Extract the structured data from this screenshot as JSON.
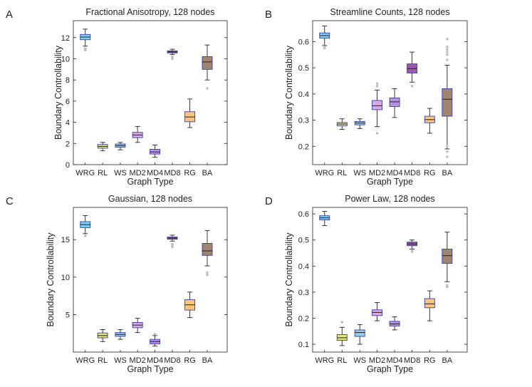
{
  "chart_data": [
    {
      "type": "box",
      "panel_label": "A",
      "title": "Fractional Anisotropy, 128 nodes",
      "xlabel": "Graph Type",
      "ylabel": "Boundary Controllability",
      "categories": [
        "WRG",
        "RL",
        "WS",
        "MD2",
        "MD4",
        "MD8",
        "RG",
        "BA"
      ],
      "ylim": [
        0,
        13.6
      ],
      "yticks": [
        0,
        2,
        4,
        6,
        8,
        10,
        12
      ],
      "ytick_labels": [
        "0",
        "2",
        "4",
        "6",
        "8",
        "10",
        "12"
      ],
      "boxes": [
        {
          "min": 11.2,
          "q1": 11.8,
          "median": 12.05,
          "q3": 12.3,
          "max": 12.8,
          "outliers": [
            10.8,
            10.9,
            11.0
          ]
        },
        {
          "min": 1.3,
          "q1": 1.55,
          "median": 1.72,
          "q3": 1.9,
          "max": 2.1,
          "outliers": []
        },
        {
          "min": 1.4,
          "q1": 1.65,
          "median": 1.8,
          "q3": 1.95,
          "max": 2.1,
          "outliers": []
        },
        {
          "min": 2.1,
          "q1": 2.55,
          "median": 2.8,
          "q3": 3.05,
          "max": 3.6,
          "outliers": []
        },
        {
          "min": 0.7,
          "q1": 1.0,
          "median": 1.2,
          "q3": 1.45,
          "max": 1.85,
          "outliers": []
        },
        {
          "min": 10.4,
          "q1": 10.55,
          "median": 10.65,
          "q3": 10.75,
          "max": 10.9,
          "outliers": [
            10.0,
            10.1,
            10.2
          ]
        },
        {
          "min": 3.5,
          "q1": 4.05,
          "median": 4.5,
          "q3": 5.0,
          "max": 6.2,
          "outliers": []
        },
        {
          "min": 8.0,
          "q1": 9.0,
          "median": 9.7,
          "q3": 10.2,
          "max": 11.3,
          "outliers": [
            7.2
          ]
        }
      ]
    },
    {
      "type": "box",
      "panel_label": "B",
      "title": "Streamline Counts, 128 nodes",
      "xlabel": "Graph Type",
      "ylabel": "Boundary Controllability",
      "categories": [
        "WRG",
        "RL",
        "WS",
        "MD2",
        "MD4",
        "MD8",
        "RG",
        "BA"
      ],
      "ylim": [
        0.13,
        0.68
      ],
      "yticks": [
        0.2,
        0.3,
        0.4,
        0.5,
        0.6
      ],
      "ytick_labels": [
        "0.2",
        "0.3",
        "0.4",
        "0.5",
        "0.6"
      ],
      "boxes": [
        {
          "min": 0.585,
          "q1": 0.613,
          "median": 0.623,
          "q3": 0.633,
          "max": 0.66,
          "outliers": [
            0.575,
            0.58
          ]
        },
        {
          "min": 0.265,
          "q1": 0.278,
          "median": 0.285,
          "q3": 0.291,
          "max": 0.305,
          "outliers": []
        },
        {
          "min": 0.268,
          "q1": 0.282,
          "median": 0.289,
          "q3": 0.295,
          "max": 0.305,
          "outliers": []
        },
        {
          "min": 0.275,
          "q1": 0.34,
          "median": 0.355,
          "q3": 0.375,
          "max": 0.415,
          "outliers": [
            0.25,
            0.43,
            0.44
          ]
        },
        {
          "min": 0.31,
          "q1": 0.352,
          "median": 0.37,
          "q3": 0.385,
          "max": 0.42,
          "outliers": []
        },
        {
          "min": 0.445,
          "q1": 0.48,
          "median": 0.497,
          "q3": 0.515,
          "max": 0.56,
          "outliers": [
            0.43
          ]
        },
        {
          "min": 0.25,
          "q1": 0.29,
          "median": 0.302,
          "q3": 0.315,
          "max": 0.345,
          "outliers": []
        },
        {
          "min": 0.19,
          "q1": 0.315,
          "median": 0.38,
          "q3": 0.42,
          "max": 0.51,
          "outliers": [
            0.16,
            0.18,
            0.2,
            0.53,
            0.55,
            0.56,
            0.57,
            0.58,
            0.61
          ]
        }
      ]
    },
    {
      "type": "box",
      "panel_label": "C",
      "title": "Gaussian, 128 nodes",
      "xlabel": "Graph Type",
      "ylabel": "Boundary Controllability",
      "categories": [
        "WRG",
        "RL",
        "WS",
        "MD2",
        "MD4",
        "MD8",
        "RG",
        "BA"
      ],
      "ylim": [
        0,
        19.3
      ],
      "yticks": [
        5,
        10,
        15
      ],
      "ytick_labels": [
        "5",
        "10",
        "15"
      ],
      "boxes": [
        {
          "min": 15.8,
          "q1": 16.6,
          "median": 17.0,
          "q3": 17.4,
          "max": 18.2,
          "outliers": [
            15.5
          ]
        },
        {
          "min": 1.4,
          "q1": 1.9,
          "median": 2.2,
          "q3": 2.55,
          "max": 3.0,
          "outliers": []
        },
        {
          "min": 1.7,
          "q1": 2.1,
          "median": 2.35,
          "q3": 2.6,
          "max": 3.0,
          "outliers": []
        },
        {
          "min": 2.6,
          "q1": 3.25,
          "median": 3.6,
          "q3": 3.95,
          "max": 4.5,
          "outliers": []
        },
        {
          "min": 0.8,
          "q1": 1.1,
          "median": 1.4,
          "q3": 1.7,
          "max": 2.2,
          "outliers": [
            2.4
          ]
        },
        {
          "min": 14.8,
          "q1": 15.05,
          "median": 15.2,
          "q3": 15.35,
          "max": 15.6,
          "outliers": [
            14.0,
            14.2,
            14.4
          ]
        },
        {
          "min": 4.6,
          "q1": 5.6,
          "median": 6.3,
          "q3": 7.0,
          "max": 8.0,
          "outliers": []
        },
        {
          "min": 11.5,
          "q1": 12.9,
          "median": 13.5,
          "q3": 14.5,
          "max": 16.2,
          "outliers": [
            10.3,
            10.6
          ]
        }
      ]
    },
    {
      "type": "box",
      "panel_label": "D",
      "title": "Power Law, 128 nodes",
      "xlabel": "Graph Type",
      "ylabel": "Boundary Controllability",
      "categories": [
        "WRG",
        "RL",
        "WS",
        "MD2",
        "MD4",
        "MD8",
        "RG",
        "BA"
      ],
      "ylim": [
        0.07,
        0.625
      ],
      "yticks": [
        0.1,
        0.2,
        0.3,
        0.4,
        0.5,
        0.6
      ],
      "ytick_labels": [
        "0.1",
        "0.2",
        "0.3",
        "0.4",
        "0.5",
        "0.6"
      ],
      "boxes": [
        {
          "min": 0.555,
          "q1": 0.577,
          "median": 0.585,
          "q3": 0.593,
          "max": 0.61,
          "outliers": []
        },
        {
          "min": 0.095,
          "q1": 0.115,
          "median": 0.125,
          "q3": 0.137,
          "max": 0.165,
          "outliers": [
            0.185
          ]
        },
        {
          "min": 0.1,
          "q1": 0.13,
          "median": 0.145,
          "q3": 0.155,
          "max": 0.175,
          "outliers": []
        },
        {
          "min": 0.19,
          "q1": 0.21,
          "median": 0.222,
          "q3": 0.232,
          "max": 0.26,
          "outliers": []
        },
        {
          "min": 0.155,
          "q1": 0.17,
          "median": 0.178,
          "q3": 0.188,
          "max": 0.205,
          "outliers": []
        },
        {
          "min": 0.465,
          "q1": 0.478,
          "median": 0.485,
          "q3": 0.492,
          "max": 0.5,
          "outliers": [
            0.455,
            0.46
          ]
        },
        {
          "min": 0.19,
          "q1": 0.24,
          "median": 0.255,
          "q3": 0.275,
          "max": 0.305,
          "outliers": []
        },
        {
          "min": 0.34,
          "q1": 0.41,
          "median": 0.44,
          "q3": 0.465,
          "max": 0.53,
          "outliers": [
            0.32,
            0.325
          ]
        }
      ]
    }
  ],
  "colors": {
    "box_fills": [
      "#7dcdf5",
      "#e6e47e",
      "#9cc8ea",
      "#e0a8e6",
      "#b892e8",
      "#9c57b5",
      "#fbc57f",
      "#a08470"
    ],
    "box_edge": "#3543a6",
    "whisker": "#231f20",
    "outlier": "#bfbfbf",
    "median": "#231f20",
    "axes": "#231f20"
  }
}
